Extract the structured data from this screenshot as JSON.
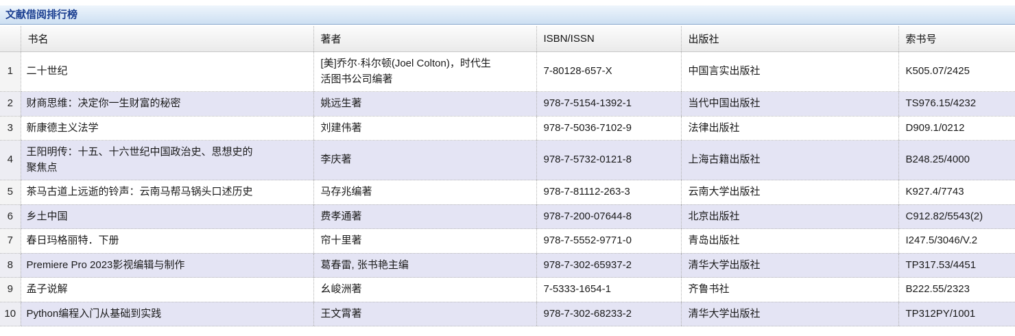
{
  "title": "文献借阅排行榜",
  "colors": {
    "stripe": "#e4e4f4",
    "title_text": "#1b3f91",
    "bar_top": "#eef5fc",
    "bar_bottom": "#cddff2",
    "bar_border": "#8aa9cd"
  },
  "table": {
    "rank_header": "",
    "columns": [
      "书名",
      "著者",
      "ISBN/ISSN",
      "出版社",
      "索书号"
    ],
    "rows": [
      {
        "rank": "1",
        "title": "二十世纪",
        "author": "[美]乔尔·科尔顿(Joel Colton)，时代生活图书公司编著",
        "isbn": "7-80128-657-X",
        "publisher": "中国言实出版社",
        "call_number": "K505.07/2425"
      },
      {
        "rank": "2",
        "title": "财商思维：决定你一生财富的秘密",
        "author": "姚远生著",
        "isbn": "978-7-5154-1392-1",
        "publisher": "当代中国出版社",
        "call_number": "TS976.15/4232"
      },
      {
        "rank": "3",
        "title": "新康德主义法学",
        "author": "刘建伟著",
        "isbn": "978-7-5036-7102-9",
        "publisher": "法律出版社",
        "call_number": "D909.1/0212"
      },
      {
        "rank": "4",
        "title": "王阳明传：十五、十六世纪中国政治史、思想史的聚焦点",
        "author": "李庆著",
        "isbn": "978-7-5732-0121-8",
        "publisher": "上海古籍出版社",
        "call_number": "B248.25/4000"
      },
      {
        "rank": "5",
        "title": "茶马古道上远逝的铃声：云南马帮马锅头口述历史",
        "author": "马存兆编著",
        "isbn": "978-7-81112-263-3",
        "publisher": "云南大学出版社",
        "call_number": "K927.4/7743"
      },
      {
        "rank": "6",
        "title": "乡土中国",
        "author": "费孝通著",
        "isbn": "978-7-200-07644-8",
        "publisher": "北京出版社",
        "call_number": "C912.82/5543(2)"
      },
      {
        "rank": "7",
        "title": "春日玛格丽特．下册",
        "author": "帘十里著",
        "isbn": "978-7-5552-9771-0",
        "publisher": "青岛出版社",
        "call_number": "I247.5/3046/V.2"
      },
      {
        "rank": "8",
        "title": "Premiere Pro 2023影视编辑与制作",
        "author": "葛春雷, 张书艳主编",
        "isbn": "978-7-302-65937-2",
        "publisher": "清华大学出版社",
        "call_number": "TP317.53/4451"
      },
      {
        "rank": "9",
        "title": "孟子说解",
        "author": "幺峻洲著",
        "isbn": "7-5333-1654-1",
        "publisher": "齐鲁书社",
        "call_number": "B222.55/2323"
      },
      {
        "rank": "10",
        "title": "Python编程入门从基础到实践",
        "author": "王文霄著",
        "isbn": "978-7-302-68233-2",
        "publisher": "清华大学出版社",
        "call_number": "TP312PY/1001"
      }
    ]
  }
}
